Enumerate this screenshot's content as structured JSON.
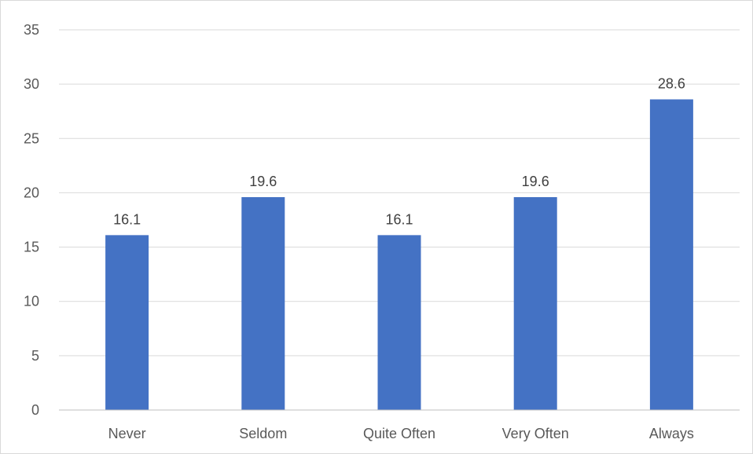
{
  "chart_data": {
    "type": "bar",
    "categories": [
      "Never",
      "Seldom",
      "Quite Often",
      "Very Often",
      "Always"
    ],
    "values": [
      16.1,
      19.6,
      16.1,
      19.6,
      28.6
    ],
    "data_labels": [
      "16.1",
      "19.6",
      "16.1",
      "19.6",
      "28.6"
    ],
    "title": "",
    "xlabel": "",
    "ylabel": "",
    "ylim": [
      0,
      35
    ],
    "yticks": [
      0,
      5,
      10,
      15,
      20,
      25,
      30,
      35
    ],
    "ytick_labels": [
      "0",
      "5",
      "10",
      "15",
      "20",
      "25",
      "30",
      "35"
    ],
    "grid": true,
    "legend": "none",
    "bar_color": "#4472C4"
  }
}
